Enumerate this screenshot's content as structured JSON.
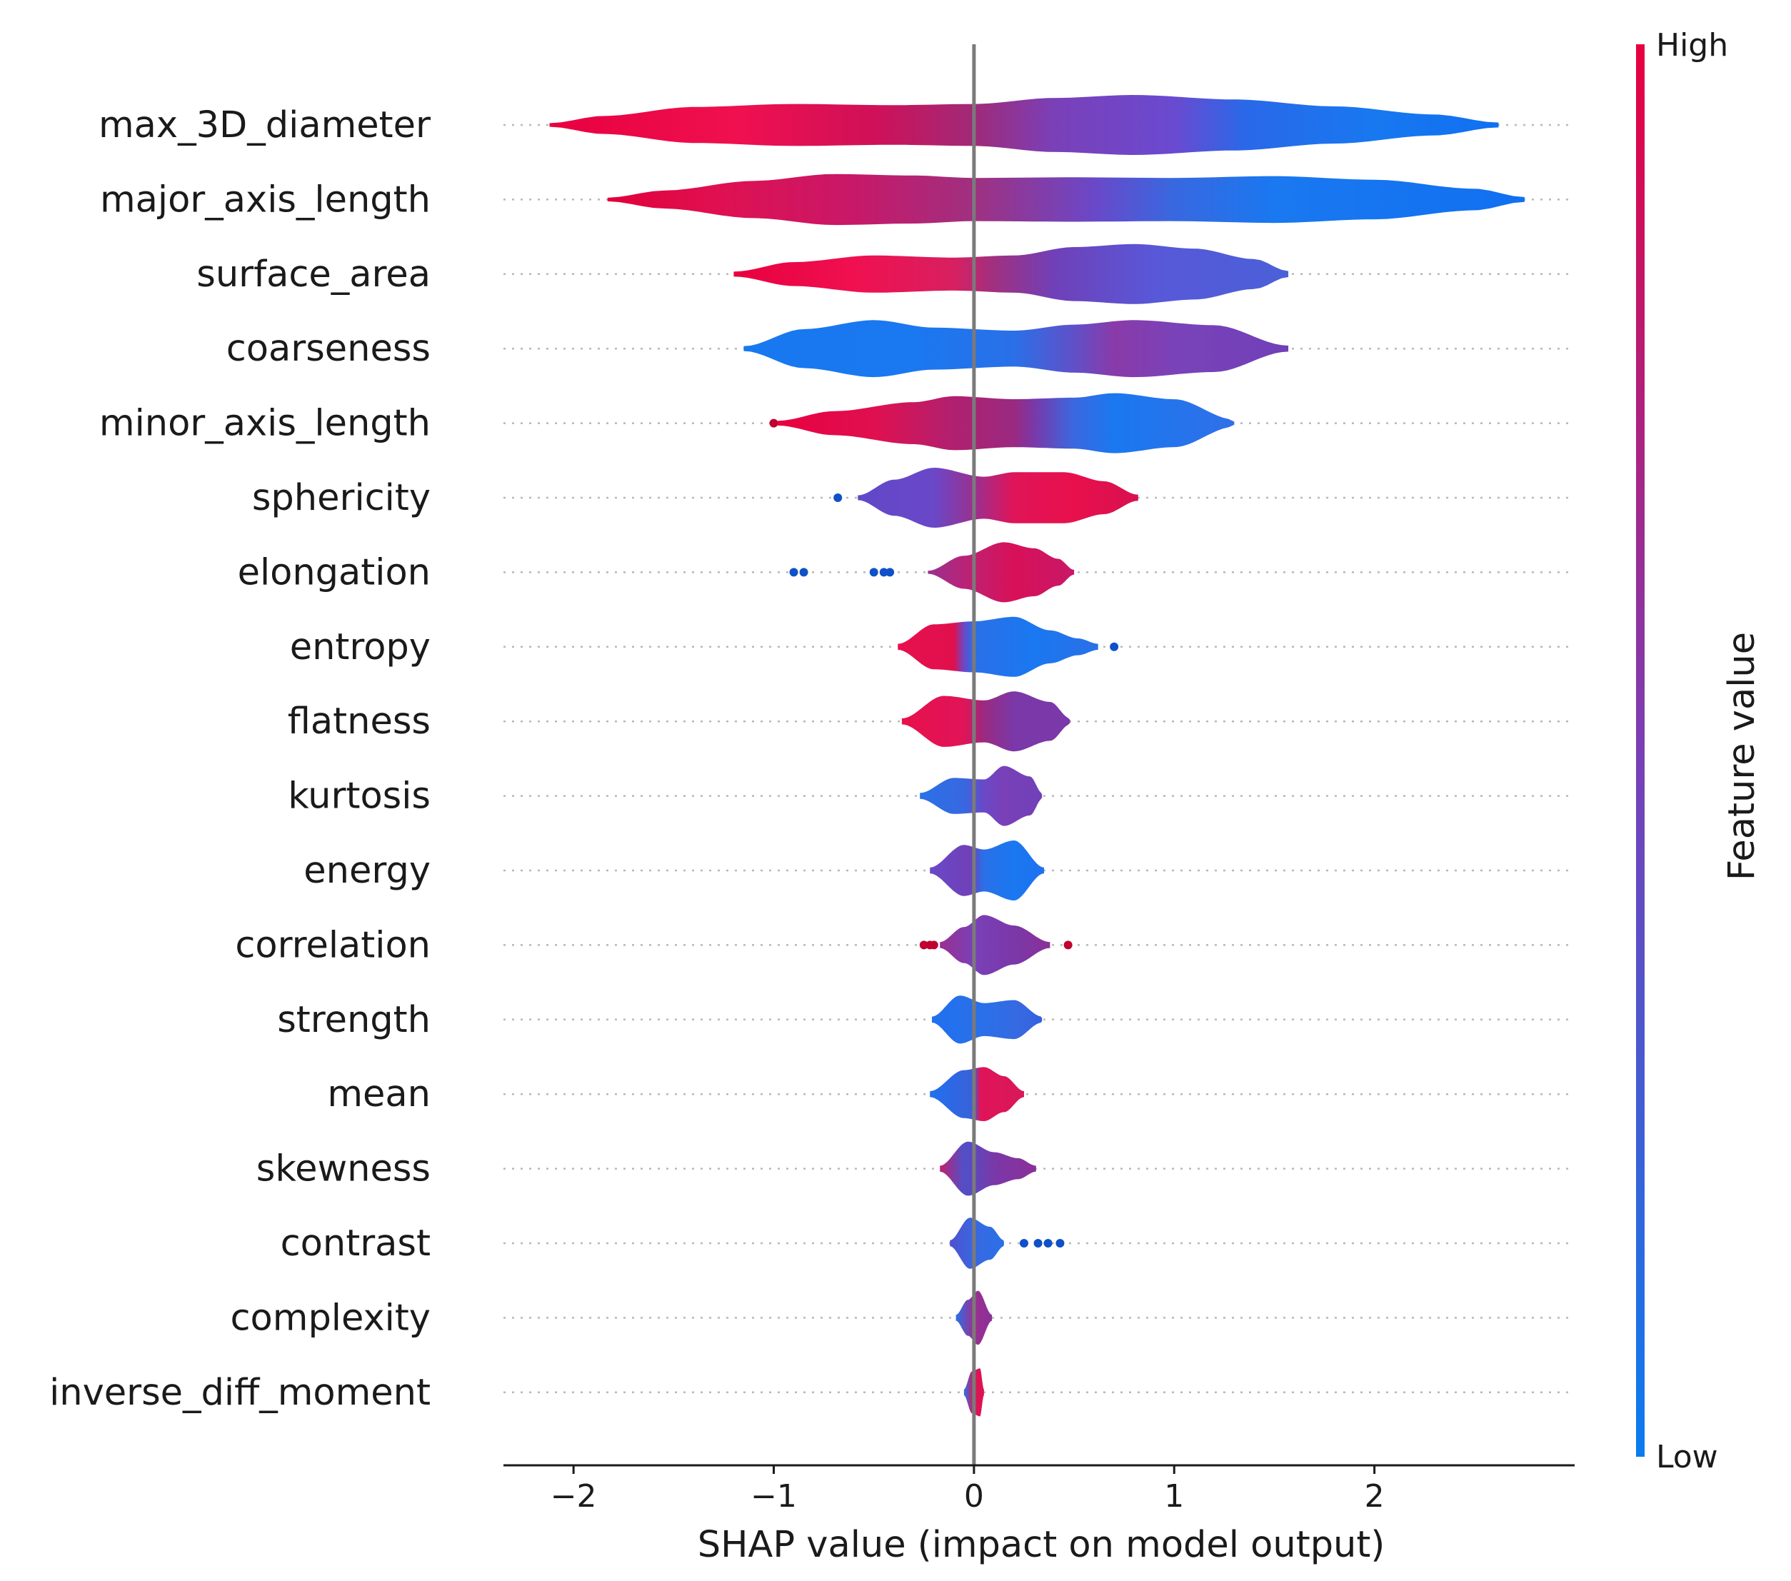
{
  "chart_data": {
    "type": "violin",
    "xlabel": "SHAP value (impact on model output)",
    "xlim": [
      -2.35,
      3.0
    ],
    "xticks": [
      -2,
      -1,
      0,
      1,
      2
    ],
    "xtick_labels": [
      "−2",
      "−1",
      "0",
      "1",
      "2"
    ],
    "grid": "dotted horizontal lines",
    "colorbar": {
      "title": "Feature value",
      "high_label": "High",
      "low_label": "Low",
      "high_color": "#e8003f",
      "low_color": "#0a7cf0",
      "mid_color": "#7a3fb5"
    },
    "features": [
      {
        "name": "max_3D_diameter",
        "min": -2.12,
        "max": 2.62,
        "profile": [
          [
            -2.12,
            0.06
          ],
          [
            -1.85,
            0.3
          ],
          [
            -1.4,
            0.6
          ],
          [
            -0.9,
            0.7
          ],
          [
            -0.4,
            0.66
          ],
          [
            0,
            0.7
          ],
          [
            0.4,
            0.9
          ],
          [
            0.8,
            1.0
          ],
          [
            1.3,
            0.85
          ],
          [
            1.8,
            0.62
          ],
          [
            2.3,
            0.35
          ],
          [
            2.62,
            0.08
          ]
        ],
        "colors": [
          [
            -2.12,
            "#e8003f"
          ],
          [
            -1.2,
            "#f0104f"
          ],
          [
            -0.5,
            "#d01058"
          ],
          [
            0,
            "#a02a78"
          ],
          [
            0.4,
            "#7a40b8"
          ],
          [
            1.0,
            "#6a4ad0"
          ],
          [
            1.35,
            "#2a68e8"
          ],
          [
            2.0,
            "#1878f0"
          ],
          [
            2.62,
            "#1070f0"
          ]
        ],
        "dots": []
      },
      {
        "name": "major_axis_length",
        "min": -1.83,
        "max": 2.75,
        "profile": [
          [
            -1.83,
            0.06
          ],
          [
            -1.55,
            0.3
          ],
          [
            -1.1,
            0.62
          ],
          [
            -0.7,
            0.85
          ],
          [
            -0.3,
            0.8
          ],
          [
            0,
            0.72
          ],
          [
            0.5,
            0.74
          ],
          [
            1.0,
            0.72
          ],
          [
            1.5,
            0.78
          ],
          [
            2.0,
            0.66
          ],
          [
            2.5,
            0.36
          ],
          [
            2.75,
            0.08
          ]
        ],
        "colors": [
          [
            -1.83,
            "#e0003a"
          ],
          [
            -1.3,
            "#e01050"
          ],
          [
            -0.6,
            "#c81868"
          ],
          [
            0,
            "#a03080"
          ],
          [
            0.6,
            "#6a48c8"
          ],
          [
            1.0,
            "#3868e0"
          ],
          [
            1.5,
            "#1a78f0"
          ],
          [
            2.75,
            "#1070f0"
          ]
        ],
        "dots": []
      },
      {
        "name": "surface_area",
        "min": -1.2,
        "max": 1.57,
        "profile": [
          [
            -1.2,
            0.08
          ],
          [
            -0.9,
            0.4
          ],
          [
            -0.5,
            0.62
          ],
          [
            -0.1,
            0.55
          ],
          [
            0.2,
            0.62
          ],
          [
            0.5,
            0.9
          ],
          [
            0.8,
            1.0
          ],
          [
            1.1,
            0.85
          ],
          [
            1.4,
            0.5
          ],
          [
            1.57,
            0.1
          ]
        ],
        "colors": [
          [
            -1.2,
            "#e8003f"
          ],
          [
            -0.6,
            "#f01050"
          ],
          [
            -0.1,
            "#d82060"
          ],
          [
            0.1,
            "#a03080"
          ],
          [
            0.4,
            "#7040b8"
          ],
          [
            0.9,
            "#5858d8"
          ],
          [
            1.57,
            "#4a60d8"
          ]
        ],
        "dots": []
      },
      {
        "name": "coarseness",
        "min": -1.15,
        "max": 1.57,
        "profile": [
          [
            -1.15,
            0.08
          ],
          [
            -0.85,
            0.65
          ],
          [
            -0.5,
            0.95
          ],
          [
            -0.2,
            0.7
          ],
          [
            0.2,
            0.6
          ],
          [
            0.5,
            0.8
          ],
          [
            0.8,
            0.95
          ],
          [
            1.2,
            0.78
          ],
          [
            1.57,
            0.1
          ]
        ],
        "colors": [
          [
            -1.15,
            "#1878f0"
          ],
          [
            -0.3,
            "#1a78f0"
          ],
          [
            0.2,
            "#2a70e8"
          ],
          [
            0.5,
            "#6050c8"
          ],
          [
            0.7,
            "#8a3aa8"
          ],
          [
            1.0,
            "#7a42b8"
          ],
          [
            1.57,
            "#7040b8"
          ]
        ],
        "dots": []
      },
      {
        "name": "minor_axis_length",
        "min": -0.98,
        "max": 1.3,
        "profile": [
          [
            -0.98,
            0.08
          ],
          [
            -0.7,
            0.4
          ],
          [
            -0.3,
            0.7
          ],
          [
            -0.1,
            0.9
          ],
          [
            0.2,
            0.8
          ],
          [
            0.5,
            0.85
          ],
          [
            0.7,
            1.0
          ],
          [
            1.0,
            0.8
          ],
          [
            1.3,
            0.12
          ]
        ],
        "colors": [
          [
            -0.98,
            "#e8003f"
          ],
          [
            -0.5,
            "#e01050"
          ],
          [
            -0.1,
            "#b02070"
          ],
          [
            0.2,
            "#9a2a80"
          ],
          [
            0.3,
            "#7a38a8"
          ],
          [
            0.5,
            "#3a68e0"
          ],
          [
            0.7,
            "#1a78f0"
          ],
          [
            1.3,
            "#3070e8"
          ]
        ],
        "dots": [
          [
            -1.0,
            "#c00030"
          ]
        ]
      },
      {
        "name": "sphericity",
        "min": -0.58,
        "max": 0.82,
        "profile": [
          [
            -0.58,
            0.08
          ],
          [
            -0.4,
            0.6
          ],
          [
            -0.2,
            1.0
          ],
          [
            0.05,
            0.7
          ],
          [
            0.2,
            0.85
          ],
          [
            0.45,
            0.85
          ],
          [
            0.65,
            0.55
          ],
          [
            0.82,
            0.1
          ]
        ],
        "colors": [
          [
            -0.58,
            "#6048c8"
          ],
          [
            -0.2,
            "#6a48c8"
          ],
          [
            0.0,
            "#9a3090"
          ],
          [
            0.2,
            "#e01458"
          ],
          [
            0.5,
            "#e8104c"
          ],
          [
            0.82,
            "#d81050"
          ]
        ],
        "dots": [
          [
            -0.68,
            "#1050c8"
          ]
        ]
      },
      {
        "name": "elongation",
        "min": -0.23,
        "max": 0.5,
        "profile": [
          [
            -0.23,
            0.05
          ],
          [
            -0.05,
            0.55
          ],
          [
            0.15,
            1.0
          ],
          [
            0.3,
            0.8
          ],
          [
            0.42,
            0.45
          ],
          [
            0.5,
            0.08
          ]
        ],
        "colors": [
          [
            -0.23,
            "#9a3090"
          ],
          [
            0.0,
            "#c02070"
          ],
          [
            0.2,
            "#d81058"
          ],
          [
            0.5,
            "#c81868"
          ]
        ],
        "dots": [
          [
            -0.9,
            "#1050c8"
          ],
          [
            -0.85,
            "#1050c8"
          ],
          [
            -0.5,
            "#1050c8"
          ],
          [
            -0.45,
            "#1050c8"
          ],
          [
            -0.42,
            "#1050c8"
          ]
        ]
      },
      {
        "name": "entropy",
        "min": -0.38,
        "max": 0.62,
        "profile": [
          [
            -0.38,
            0.1
          ],
          [
            -0.2,
            0.75
          ],
          [
            0.0,
            0.85
          ],
          [
            0.2,
            1.0
          ],
          [
            0.38,
            0.55
          ],
          [
            0.52,
            0.28
          ],
          [
            0.62,
            0.1
          ]
        ],
        "colors": [
          [
            -0.38,
            "#e81050"
          ],
          [
            -0.1,
            "#e0104c"
          ],
          [
            -0.05,
            "#6a48c8"
          ],
          [
            0.0,
            "#2a70e8"
          ],
          [
            0.3,
            "#1a78f0"
          ],
          [
            0.62,
            "#2a70e8"
          ]
        ],
        "dots": [
          [
            0.7,
            "#1050c8"
          ]
        ]
      },
      {
        "name": "flatness",
        "min": -0.36,
        "max": 0.48,
        "profile": [
          [
            -0.36,
            0.1
          ],
          [
            -0.15,
            0.85
          ],
          [
            0.05,
            0.7
          ],
          [
            0.2,
            1.0
          ],
          [
            0.38,
            0.65
          ],
          [
            0.48,
            0.1
          ]
        ],
        "colors": [
          [
            -0.36,
            "#e8104c"
          ],
          [
            -0.05,
            "#e01458"
          ],
          [
            0.05,
            "#9a2a80"
          ],
          [
            0.2,
            "#7a38a8"
          ],
          [
            0.48,
            "#7a38a8"
          ]
        ],
        "dots": []
      },
      {
        "name": "kurtosis",
        "min": -0.27,
        "max": 0.34,
        "profile": [
          [
            -0.27,
            0.1
          ],
          [
            -0.1,
            0.6
          ],
          [
            0.05,
            0.55
          ],
          [
            0.15,
            1.0
          ],
          [
            0.28,
            0.65
          ],
          [
            0.34,
            0.1
          ]
        ],
        "colors": [
          [
            -0.27,
            "#2a70e8"
          ],
          [
            -0.05,
            "#3868e0"
          ],
          [
            0.05,
            "#6a48c8"
          ],
          [
            0.15,
            "#7a40b8"
          ],
          [
            0.34,
            "#7040b8"
          ]
        ],
        "dots": []
      },
      {
        "name": "energy",
        "min": -0.22,
        "max": 0.35,
        "profile": [
          [
            -0.22,
            0.1
          ],
          [
            -0.05,
            0.85
          ],
          [
            0.05,
            0.7
          ],
          [
            0.2,
            1.0
          ],
          [
            0.35,
            0.1
          ]
        ],
        "colors": [
          [
            -0.22,
            "#6a48c8"
          ],
          [
            -0.02,
            "#7040b8"
          ],
          [
            0.05,
            "#2a70e8"
          ],
          [
            0.2,
            "#1a78f0"
          ],
          [
            0.35,
            "#2070f0"
          ]
        ],
        "dots": []
      },
      {
        "name": "correlation",
        "min": -0.17,
        "max": 0.38,
        "profile": [
          [
            -0.17,
            0.1
          ],
          [
            -0.05,
            0.6
          ],
          [
            0.05,
            1.0
          ],
          [
            0.2,
            0.65
          ],
          [
            0.38,
            0.1
          ]
        ],
        "colors": [
          [
            -0.17,
            "#9a3090"
          ],
          [
            0.0,
            "#7a40b8"
          ],
          [
            0.2,
            "#7a38a8"
          ],
          [
            0.38,
            "#8a3098"
          ]
        ],
        "dots": [
          [
            -0.25,
            "#c00030"
          ],
          [
            -0.22,
            "#c00030"
          ],
          [
            -0.2,
            "#c00030"
          ],
          [
            0.47,
            "#c00030"
          ]
        ]
      },
      {
        "name": "strength",
        "min": -0.21,
        "max": 0.34,
        "profile": [
          [
            -0.21,
            0.1
          ],
          [
            -0.07,
            0.8
          ],
          [
            0.05,
            0.55
          ],
          [
            0.2,
            0.65
          ],
          [
            0.34,
            0.1
          ]
        ],
        "colors": [
          [
            -0.21,
            "#2070f0"
          ],
          [
            0.05,
            "#2a70e8"
          ],
          [
            0.25,
            "#3868e0"
          ],
          [
            0.34,
            "#3060e0"
          ]
        ],
        "dots": []
      },
      {
        "name": "mean",
        "min": -0.22,
        "max": 0.25,
        "profile": [
          [
            -0.22,
            0.1
          ],
          [
            -0.05,
            0.8
          ],
          [
            0.05,
            0.9
          ],
          [
            0.15,
            0.6
          ],
          [
            0.25,
            0.1
          ]
        ],
        "colors": [
          [
            -0.22,
            "#2070f0"
          ],
          [
            0.0,
            "#3a60d8"
          ],
          [
            0.03,
            "#e01458"
          ],
          [
            0.25,
            "#d81858"
          ]
        ],
        "dots": []
      },
      {
        "name": "skewness",
        "min": -0.17,
        "max": 0.31,
        "profile": [
          [
            -0.17,
            0.1
          ],
          [
            -0.03,
            0.9
          ],
          [
            0.1,
            0.55
          ],
          [
            0.22,
            0.35
          ],
          [
            0.31,
            0.1
          ]
        ],
        "colors": [
          [
            -0.17,
            "#c02070"
          ],
          [
            -0.05,
            "#5050c8"
          ],
          [
            0.1,
            "#7a38a8"
          ],
          [
            0.31,
            "#8a3098"
          ]
        ],
        "dots": []
      },
      {
        "name": "contrast",
        "min": -0.12,
        "max": 0.15,
        "profile": [
          [
            -0.12,
            0.1
          ],
          [
            -0.02,
            0.85
          ],
          [
            0.08,
            0.55
          ],
          [
            0.15,
            0.1
          ]
        ],
        "colors": [
          [
            -0.12,
            "#5050d0"
          ],
          [
            0.0,
            "#3868e0"
          ],
          [
            0.15,
            "#2a70e8"
          ]
        ],
        "dots": [
          [
            0.25,
            "#1050c8"
          ],
          [
            0.32,
            "#1050c8"
          ],
          [
            0.37,
            "#1050c8"
          ],
          [
            0.43,
            "#1050c8"
          ]
        ]
      },
      {
        "name": "complexity",
        "min": -0.09,
        "max": 0.09,
        "profile": [
          [
            -0.09,
            0.1
          ],
          [
            -0.03,
            0.6
          ],
          [
            0.02,
            0.9
          ],
          [
            0.09,
            0.1
          ]
        ],
        "colors": [
          [
            -0.09,
            "#2a70e8"
          ],
          [
            0.0,
            "#9a3090"
          ],
          [
            0.09,
            "#8a3098"
          ]
        ],
        "dots": []
      },
      {
        "name": "inverse_diff_moment",
        "min": -0.05,
        "max": 0.05,
        "profile": [
          [
            -0.05,
            0.1
          ],
          [
            -0.01,
            0.7
          ],
          [
            0.03,
            0.8
          ],
          [
            0.05,
            0.1
          ]
        ],
        "colors": [
          [
            -0.05,
            "#2a70e8"
          ],
          [
            0.0,
            "#d81858"
          ],
          [
            0.05,
            "#e01050"
          ]
        ],
        "dots": []
      }
    ]
  }
}
